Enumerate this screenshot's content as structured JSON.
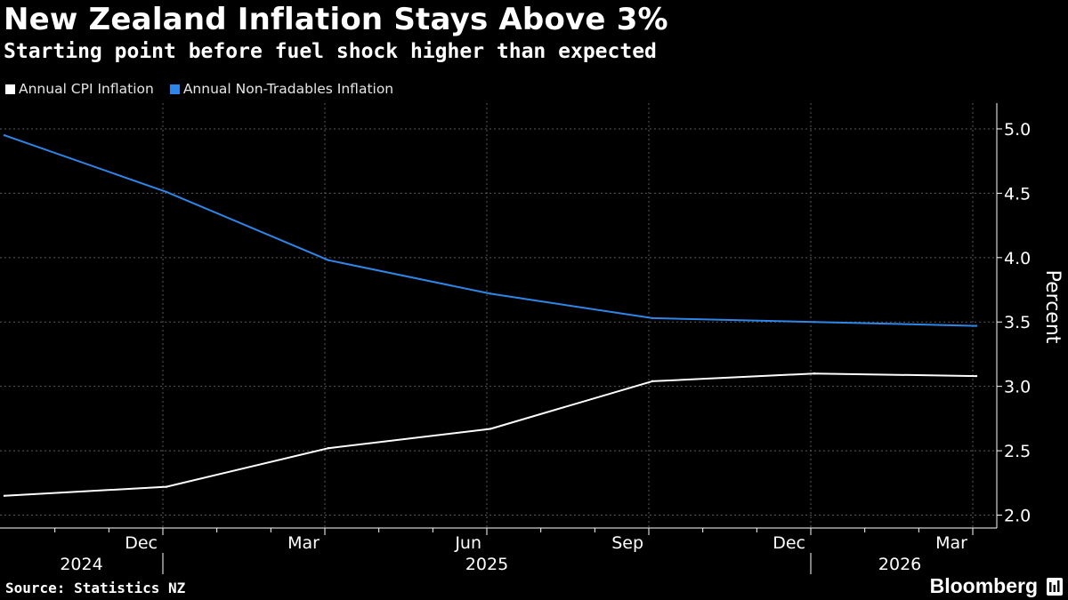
{
  "header": {
    "title": "New Zealand Inflation Stays Above 3%",
    "subtitle": "Starting point before fuel shock higher than expected"
  },
  "legend": [
    {
      "label": "Annual CPI Inflation",
      "color": "#ffffff"
    },
    {
      "label": "Annual Non-Tradables Inflation",
      "color": "#2e86e8"
    }
  ],
  "footer": {
    "source": "Source: Statistics NZ",
    "brand": "Bloomberg",
    "brand_icon": "bloomberg-terminal-icon"
  },
  "chart_data": {
    "type": "line",
    "title": "New Zealand Inflation Stays Above 3%",
    "subtitle": "Starting point before fuel shock higher than expected",
    "ylabel": "Percent",
    "xlabel": "",
    "ylim": [
      1.9,
      5.2
    ],
    "yticks": [
      "2.0",
      "2.5",
      "3.0",
      "3.5",
      "4.0",
      "4.5",
      "5.0"
    ],
    "grid": true,
    "legend_position": "top-left",
    "x": [
      "2024-Q3",
      "2024-Q4",
      "2025-Q1",
      "2025-Q2",
      "2025-Q3",
      "2025-Q4",
      "2026-Q1"
    ],
    "x_start_label_index": 0,
    "month_ticks": [
      {
        "label": "Dec",
        "index": 1
      },
      {
        "label": "Mar",
        "index": 2
      },
      {
        "label": "Jun",
        "index": 3
      },
      {
        "label": "Sep",
        "index": 4
      },
      {
        "label": "Dec",
        "index": 5
      },
      {
        "label": "Mar",
        "index": 6
      }
    ],
    "year_labels": [
      {
        "label": "2024",
        "from": -0.05,
        "to": 1
      },
      {
        "label": "2025",
        "from": 1,
        "to": 5
      },
      {
        "label": "2026",
        "from": 5,
        "to": 6.1
      }
    ],
    "series": [
      {
        "name": "Annual CPI Inflation",
        "color": "#ffffff",
        "values": [
          2.15,
          2.22,
          2.52,
          2.67,
          3.04,
          3.1,
          3.08
        ]
      },
      {
        "name": "Annual Non-Tradables Inflation",
        "color": "#2e86e8",
        "values": [
          4.95,
          4.51,
          3.98,
          3.72,
          3.53,
          3.5,
          3.47
        ]
      }
    ]
  }
}
